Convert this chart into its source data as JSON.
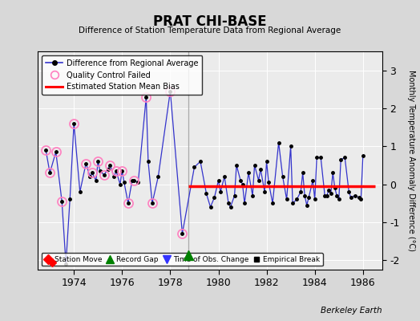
{
  "title": "PRAT CHI-BASE",
  "subtitle": "Difference of Station Temperature Data from Regional Average",
  "ylabel_right": "Monthly Temperature Anomaly Difference (°C)",
  "background_color": "#d8d8d8",
  "plot_bg_color": "#ebebeb",
  "xlim": [
    1972.5,
    1986.8
  ],
  "ylim": [
    -2.25,
    3.5
  ],
  "yticks": [
    -2,
    -1,
    0,
    1,
    2,
    3
  ],
  "xticks": [
    1974,
    1976,
    1978,
    1980,
    1982,
    1984,
    1986
  ],
  "bias_level": -0.05,
  "bias_start": 1978.75,
  "bias_end": 1986.5,
  "record_gap_x": 1978.75,
  "record_gap_y": -1.88,
  "station_move_x": 1973.08,
  "station_move_y": -2.05,
  "gap_line_x": 1978.75,
  "qc_failed_points": [
    [
      1972.833,
      0.9
    ],
    [
      1973.0,
      0.3
    ],
    [
      1973.25,
      0.85
    ],
    [
      1973.5,
      -0.45
    ],
    [
      1974.0,
      1.6
    ],
    [
      1974.5,
      0.55
    ],
    [
      1974.75,
      0.3
    ],
    [
      1975.0,
      0.6
    ],
    [
      1975.25,
      0.25
    ],
    [
      1975.5,
      0.5
    ],
    [
      1975.75,
      0.35
    ],
    [
      1976.0,
      0.35
    ],
    [
      1976.25,
      -0.5
    ],
    [
      1976.5,
      0.1
    ],
    [
      1977.0,
      2.3
    ],
    [
      1977.25,
      -0.5
    ],
    [
      1978.0,
      2.45
    ],
    [
      1978.5,
      -1.3
    ]
  ],
  "main_line_data": [
    [
      1972.833,
      0.9
    ],
    [
      1973.0,
      0.3
    ],
    [
      1973.25,
      0.85
    ],
    [
      1973.5,
      -0.45
    ],
    [
      1973.667,
      -2.1
    ],
    [
      1973.833,
      -0.4
    ],
    [
      1974.0,
      1.6
    ],
    [
      1974.25,
      -0.2
    ],
    [
      1974.5,
      0.55
    ],
    [
      1974.667,
      0.2
    ],
    [
      1974.75,
      0.3
    ],
    [
      1974.917,
      0.1
    ],
    [
      1975.0,
      0.6
    ],
    [
      1975.083,
      0.35
    ],
    [
      1975.25,
      0.25
    ],
    [
      1975.417,
      0.4
    ],
    [
      1975.5,
      0.5
    ],
    [
      1975.667,
      0.2
    ],
    [
      1975.75,
      0.35
    ],
    [
      1975.917,
      0.0
    ],
    [
      1976.0,
      0.35
    ],
    [
      1976.083,
      0.05
    ],
    [
      1976.25,
      -0.5
    ],
    [
      1976.417,
      0.1
    ],
    [
      1976.5,
      0.1
    ],
    [
      1976.667,
      0.05
    ],
    [
      1977.0,
      2.3
    ],
    [
      1977.083,
      0.6
    ],
    [
      1977.25,
      -0.5
    ],
    [
      1977.5,
      0.2
    ],
    [
      1978.0,
      2.45
    ],
    [
      1978.5,
      -1.3
    ],
    [
      1979.0,
      0.45
    ],
    [
      1979.25,
      0.6
    ],
    [
      1979.5,
      -0.25
    ],
    [
      1979.667,
      -0.6
    ],
    [
      1979.833,
      -0.35
    ],
    [
      1980.0,
      0.1
    ],
    [
      1980.083,
      -0.2
    ],
    [
      1980.25,
      0.2
    ],
    [
      1980.417,
      -0.5
    ],
    [
      1980.5,
      -0.6
    ],
    [
      1980.667,
      -0.3
    ],
    [
      1980.75,
      0.5
    ],
    [
      1980.917,
      0.1
    ],
    [
      1981.0,
      0.0
    ],
    [
      1981.083,
      -0.5
    ],
    [
      1981.25,
      0.3
    ],
    [
      1981.417,
      -0.3
    ],
    [
      1981.5,
      0.5
    ],
    [
      1981.667,
      0.1
    ],
    [
      1981.75,
      0.4
    ],
    [
      1981.917,
      -0.2
    ],
    [
      1982.0,
      0.6
    ],
    [
      1982.083,
      0.05
    ],
    [
      1982.25,
      -0.5
    ],
    [
      1982.5,
      1.1
    ],
    [
      1982.667,
      0.2
    ],
    [
      1982.833,
      -0.4
    ],
    [
      1983.0,
      1.0
    ],
    [
      1983.083,
      -0.5
    ],
    [
      1983.25,
      -0.4
    ],
    [
      1983.417,
      -0.2
    ],
    [
      1983.5,
      0.3
    ],
    [
      1983.583,
      -0.3
    ],
    [
      1983.667,
      -0.55
    ],
    [
      1983.75,
      -0.35
    ],
    [
      1983.917,
      0.1
    ],
    [
      1984.0,
      -0.4
    ],
    [
      1984.083,
      0.7
    ],
    [
      1984.25,
      0.7
    ],
    [
      1984.417,
      -0.3
    ],
    [
      1984.5,
      -0.3
    ],
    [
      1984.583,
      -0.15
    ],
    [
      1984.667,
      -0.25
    ],
    [
      1984.75,
      0.3
    ],
    [
      1984.833,
      -0.1
    ],
    [
      1984.917,
      -0.3
    ],
    [
      1985.0,
      -0.4
    ],
    [
      1985.083,
      0.65
    ],
    [
      1985.25,
      0.7
    ],
    [
      1985.417,
      -0.2
    ],
    [
      1985.5,
      -0.35
    ],
    [
      1985.667,
      -0.3
    ],
    [
      1985.833,
      -0.35
    ],
    [
      1985.917,
      -0.4
    ],
    [
      1986.0,
      0.75
    ]
  ]
}
